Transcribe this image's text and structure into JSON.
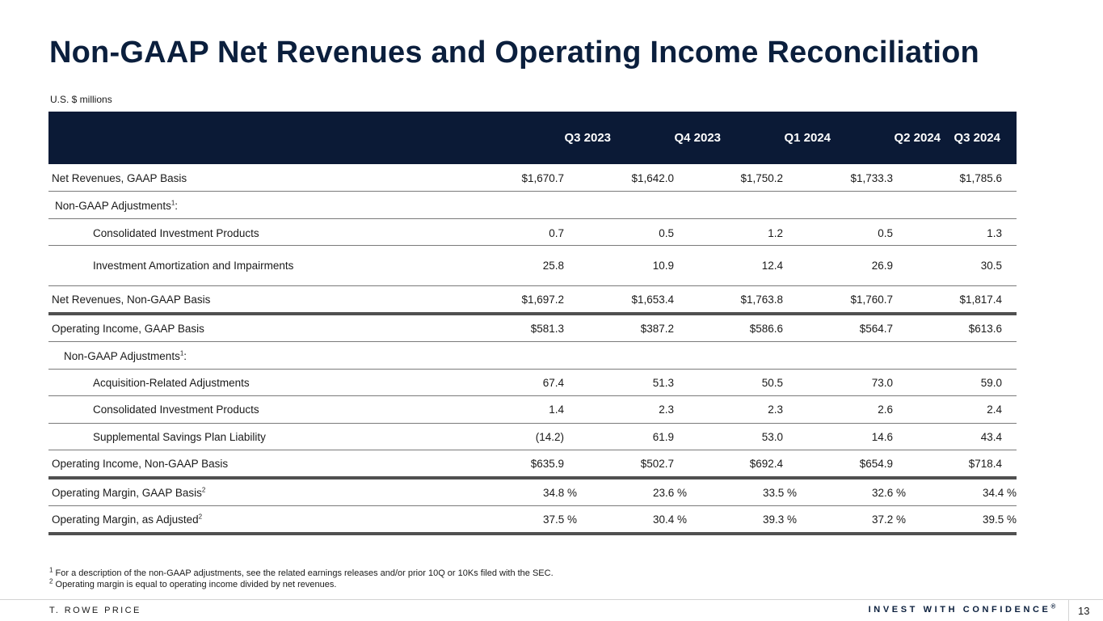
{
  "page": {
    "title": "Non-GAAP Net Revenues and Operating Income Reconciliation",
    "units": "U.S. $ millions"
  },
  "table": {
    "columns": [
      "Q3 2023",
      "Q4 2023",
      "Q1 2024",
      "Q2 2024",
      "Q3 2024"
    ],
    "rows": [
      {
        "label": "Net Revenues, GAAP Basis",
        "values": [
          "$1,670.7",
          "$1,642.0",
          "$1,750.2",
          "$1,733.3",
          "$1,785.6"
        ]
      },
      {
        "label": "Non-GAAP Adjustments",
        "sup": "1",
        "suffix": ":",
        "values": [
          "",
          "",
          "",
          "",
          ""
        ]
      },
      {
        "label": "Consolidated Investment Products",
        "values": [
          "0.7",
          "0.5",
          "1.2",
          "0.5",
          "1.3"
        ]
      },
      {
        "label": "Investment Amortization and Impairments",
        "values": [
          "25.8",
          "10.9",
          "12.4",
          "26.9",
          "30.5"
        ]
      },
      {
        "label": "Net Revenues, Non-GAAP Basis",
        "values": [
          "$1,697.2",
          "$1,653.4",
          "$1,763.8",
          "$1,760.7",
          "$1,817.4"
        ]
      },
      {
        "label": "Operating Income, GAAP Basis",
        "values": [
          "$581.3",
          "$387.2",
          "$586.6",
          "$564.7",
          "$613.6"
        ]
      },
      {
        "label": "Non-GAAP Adjustments",
        "sup": "1",
        "suffix": ":",
        "values": [
          "",
          "",
          "",
          "",
          ""
        ]
      },
      {
        "label": "Acquisition-Related Adjustments",
        "values": [
          "67.4",
          "51.3",
          "50.5",
          "73.0",
          "59.0"
        ]
      },
      {
        "label": "Consolidated Investment Products",
        "values": [
          "1.4",
          "2.3",
          "2.3",
          "2.6",
          "2.4"
        ]
      },
      {
        "label": "Supplemental Savings Plan Liability",
        "values": [
          "(14.2)",
          "61.9",
          "53.0",
          "14.6",
          "43.4"
        ]
      },
      {
        "label": "Operating Income, Non-GAAP Basis",
        "values": [
          "$635.9",
          "$502.7",
          "$692.4",
          "$654.9",
          "$718.4"
        ]
      },
      {
        "label": "Operating Margin, GAAP Basis",
        "sup": "2",
        "values": [
          "34.8 %",
          "23.6 %",
          "33.5 %",
          "32.6 %",
          "34.4 %"
        ]
      },
      {
        "label": "Operating Margin, as Adjusted",
        "sup": "2",
        "values": [
          "37.5 %",
          "30.4 %",
          "39.3 %",
          "37.2 %",
          "39.5 %"
        ]
      }
    ]
  },
  "footnotes": [
    {
      "mark": "1",
      "text": "For a description of the non-GAAP adjustments, see the related earnings releases and/or prior 10Q or 10Ks filed with the SEC."
    },
    {
      "mark": "2",
      "text": "Operating margin is equal to operating income divided by net revenues."
    }
  ],
  "footer": {
    "brand": "T. ROWE PRICE",
    "tagline": "INVEST WITH CONFIDENCE",
    "tagline_mark": "®",
    "page_number": "13"
  }
}
